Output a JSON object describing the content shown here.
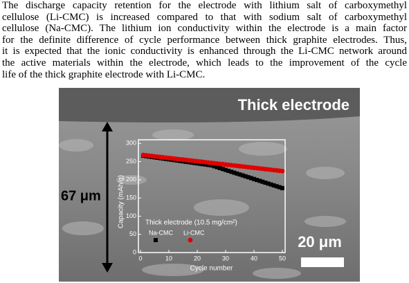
{
  "text": {
    "lines": [
      "The discharge capacity retention for the electrode with lithium salt of carboxymethyl",
      "cellulose (Li-CMC) is increased compared to that with sodium salt of carboxymethyl",
      "cellulose (Na-CMC). The lithium ion conductivity within the electrode is a main factor",
      "for the definite difference of cycle performance between thick graphite electrodes. Thus,",
      "it is expected that the ionic conductivity is enhanced through the Li-CMC network around",
      "the active materials within the electrode, which leads to the improvement of the cycle",
      "life of the thick graphite electrode with Li-CMC."
    ]
  },
  "figure": {
    "title": "Thick electrode",
    "thickness_label": "67 μm",
    "scale_label": "20 μm"
  },
  "chart_data": {
    "type": "scatter",
    "xlabel": "Cycle number",
    "ylabel": "Capacity (mAh/g)",
    "annotation": "Thick electrode (10.5 mg/cm²)",
    "x": [
      1,
      2,
      3,
      4,
      5,
      6,
      7,
      8,
      9,
      10,
      11,
      12,
      13,
      14,
      15,
      16,
      17,
      18,
      19,
      20,
      21,
      22,
      23,
      24,
      25,
      26,
      27,
      28,
      29,
      30,
      31,
      32,
      33,
      34,
      35,
      36,
      37,
      38,
      39,
      40,
      41,
      42,
      43,
      44,
      45,
      46,
      47,
      48,
      49,
      50
    ],
    "series": [
      {
        "name": "Na-CMC",
        "color": "#000000",
        "marker": "square",
        "values": [
          266,
          264.9,
          263.8,
          262.7,
          261.6,
          260.5,
          259.4,
          258.3,
          257.2,
          256.1,
          255,
          253.9,
          252.8,
          251.7,
          250.6,
          249.5,
          248.4,
          247.3,
          246.2,
          245.1,
          244,
          242.9,
          241.8,
          240.7,
          239.6,
          237.1,
          234.6,
          232.1,
          229.6,
          227.1,
          224.6,
          222.1,
          219.6,
          217.1,
          214.6,
          212.1,
          209.6,
          207.1,
          204.6,
          202.1,
          199.6,
          197.1,
          194.6,
          192.1,
          189.6,
          187.1,
          184.6,
          182.1,
          179.6,
          177.1
        ]
      },
      {
        "name": "Li-CMC",
        "color": "#e00000",
        "marker": "circle",
        "values": [
          268,
          267.1,
          266.2,
          265.3,
          264.4,
          263.5,
          262.6,
          261.7,
          260.8,
          259.9,
          259,
          258.1,
          257.2,
          256.3,
          255.4,
          254.5,
          253.6,
          252.7,
          251.8,
          250.9,
          250,
          249.1,
          248.2,
          247.3,
          246.4,
          245.5,
          244.6,
          243.7,
          242.8,
          241.9,
          241,
          240.1,
          239.2,
          238.3,
          237.4,
          236.5,
          235.6,
          234.7,
          233.8,
          232.9,
          232,
          231.1,
          230.2,
          229.3,
          228.4,
          227.5,
          226.6,
          225.7,
          224.8,
          223.9
        ]
      }
    ],
    "xlim": [
      0,
      50
    ],
    "ylim": [
      0,
      310
    ],
    "xticks": [
      0,
      10,
      20,
      30,
      40,
      50
    ],
    "yticks": [
      0,
      50,
      100,
      150,
      200,
      250,
      300
    ]
  }
}
